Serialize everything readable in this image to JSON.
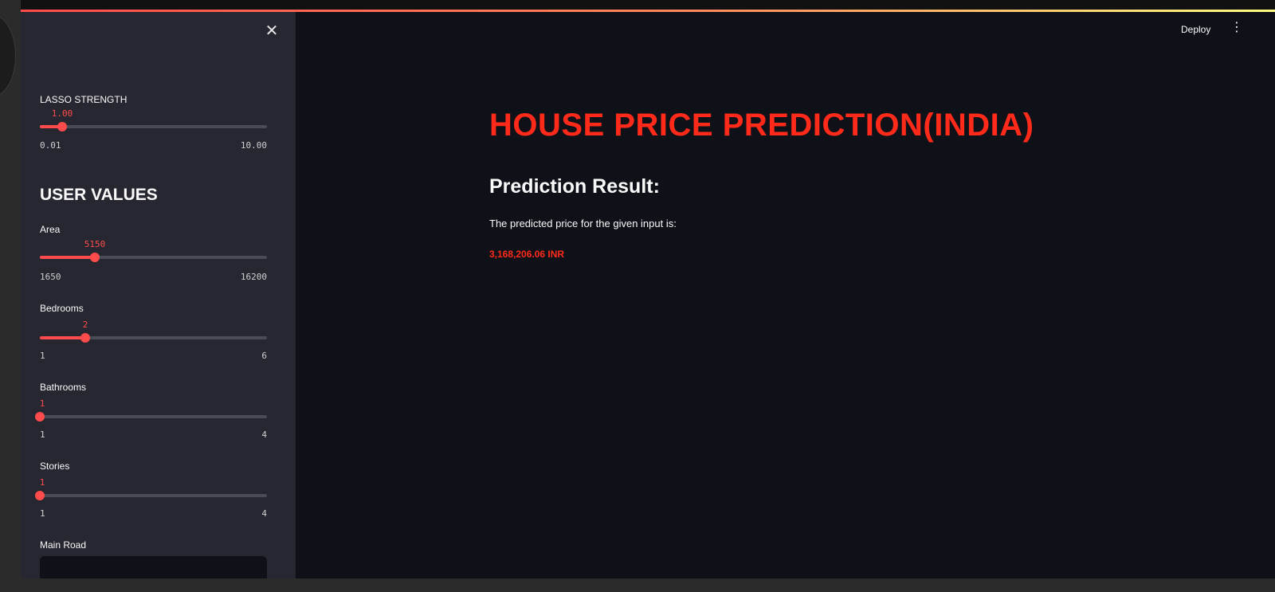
{
  "header": {
    "deploy_label": "Deploy",
    "menu_icon": "kebab-menu-icon",
    "accent_colors": [
      "#ff4b4b",
      "#fffd80"
    ]
  },
  "sidebar": {
    "close_icon": "close-icon",
    "lasso": {
      "label": "LASSO STRENGTH",
      "value": "1.00",
      "min": "0.01",
      "max": "10.00",
      "fraction": 0.099
    },
    "section_title": "USER VALUES",
    "sliders": [
      {
        "label": "Area",
        "value": "5150",
        "min": "1650",
        "max": "16200",
        "fraction": 0.241
      },
      {
        "label": "Bedrooms",
        "value": "2",
        "min": "1",
        "max": "6",
        "fraction": 0.2
      },
      {
        "label": "Bathrooms",
        "value": "1",
        "min": "1",
        "max": "4",
        "fraction": 0.0
      },
      {
        "label": "Stories",
        "value": "1",
        "min": "1",
        "max": "4",
        "fraction": 0.0
      }
    ],
    "main_road_label": "Main Road"
  },
  "main": {
    "title": "HOUSE PRICE PREDICTION(INDIA)",
    "result_heading": "Prediction Result:",
    "result_text": "The predicted price for the given input is:",
    "result_value": "3,168,206.06 INR",
    "accent_color": "#ff2a1a"
  }
}
